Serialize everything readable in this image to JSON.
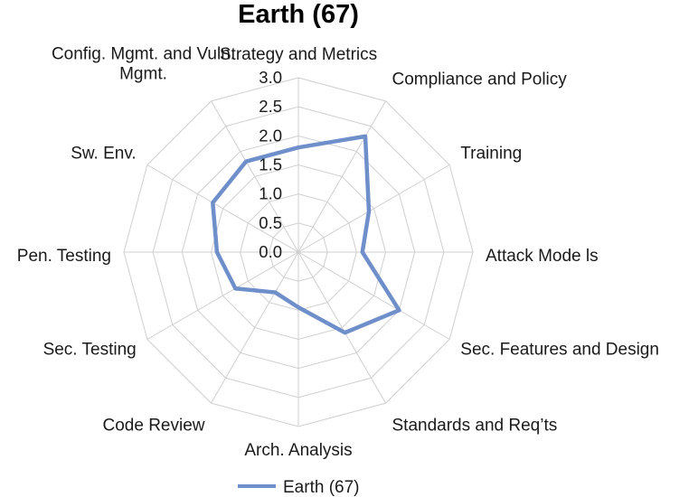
{
  "chart_data": {
    "type": "radar",
    "title": "Earth (67)",
    "categories": [
      "Strategy and Metrics",
      "Compliance and Policy",
      "Training",
      "Attack Mode ls",
      "Sec. Features and Design",
      "Standards and Req’ts",
      "Arch. Analysis",
      "Code Review",
      "Sec. Testing",
      "Pen. Testing",
      "Sw. Env.",
      "Config. Mgmt. and Vuln. Mgmt."
    ],
    "series": [
      {
        "name": "Earth (67)",
        "color": "#6f8fcb",
        "values": [
          1.8,
          2.3,
          1.4,
          1.1,
          2.0,
          1.6,
          0.95,
          0.8,
          1.25,
          1.4,
          1.7,
          1.8
        ]
      }
    ],
    "r_ticks": [
      "0.0",
      "0.5",
      "1.0",
      "1.5",
      "2.0",
      "2.5",
      "3.0"
    ],
    "r_range": [
      0,
      3
    ],
    "grid": true,
    "legend_position": "bottom"
  }
}
